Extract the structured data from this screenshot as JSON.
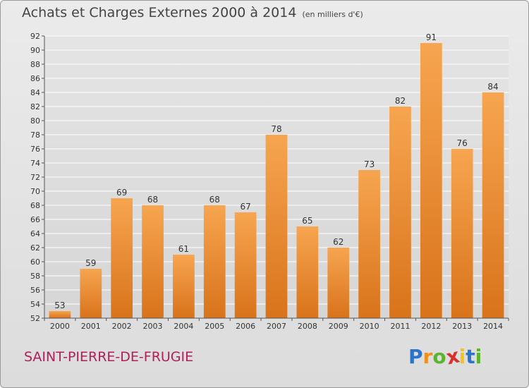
{
  "header": {
    "title": "Achats et Charges Externes 2000 à 2014",
    "subtitle": "(en milliers d'€)"
  },
  "footer": {
    "commune": "SAINT-PIERRE-DE-FRUGIE"
  },
  "logo": {
    "letters": [
      "P",
      "r",
      "o",
      "x",
      "i",
      "t",
      "i"
    ],
    "colors": [
      "#2a74c9",
      "#f0901b",
      "#5ab52c",
      "#d92f2f",
      "#f0c419",
      "#2a74c9",
      "#5ab52c"
    ]
  },
  "colors": {
    "bar_top": "#f7a550",
    "bar_bottom": "#d8731a",
    "grid": "#ffffff",
    "title": "#444444",
    "commune": "#b11f5a"
  },
  "chart_data": {
    "type": "bar",
    "title": "Achats et Charges Externes 2000 à 2014",
    "subtitle": "(en milliers d'€)",
    "xlabel": "",
    "ylabel": "",
    "categories": [
      "2000",
      "2001",
      "2002",
      "2003",
      "2004",
      "2005",
      "2006",
      "2007",
      "2008",
      "2009",
      "2010",
      "2011",
      "2012",
      "2013",
      "2014"
    ],
    "values": [
      53,
      59,
      69,
      68,
      61,
      68,
      67,
      78,
      65,
      62,
      73,
      82,
      91,
      76,
      84
    ],
    "ylim": [
      52,
      92
    ],
    "yticks": [
      52,
      54,
      56,
      58,
      60,
      62,
      64,
      66,
      68,
      70,
      72,
      74,
      76,
      78,
      80,
      82,
      84,
      86,
      88,
      90,
      92
    ],
    "grid": true,
    "data_labels": true
  }
}
